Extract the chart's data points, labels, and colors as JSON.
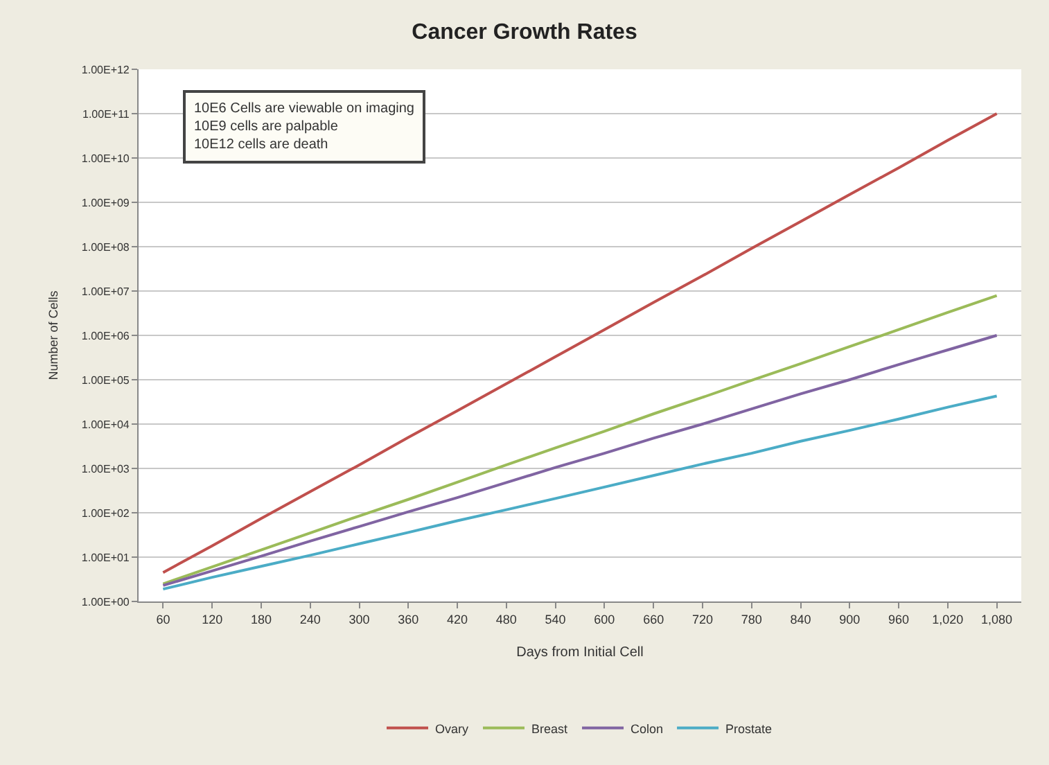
{
  "chart_data": {
    "type": "line",
    "title": "Cancer Growth Rates",
    "xlabel": "Days from Initial Cell",
    "ylabel": "Number of Cells",
    "categories": [
      "60",
      "120",
      "180",
      "240",
      "300",
      "360",
      "420",
      "480",
      "540",
      "600",
      "660",
      "720",
      "780",
      "840",
      "900",
      "960",
      "1,020",
      "1,080"
    ],
    "series": [
      {
        "name": "Ovary",
        "color": "#c0504d",
        "values": [
          4.5,
          18,
          74,
          300,
          1200,
          5000,
          20000,
          81000,
          330000,
          1350000,
          5500000,
          22000000,
          91000000,
          370000000,
          1500000000,
          6000000000,
          25000000000,
          100000000000
        ]
      },
      {
        "name": "Breast",
        "color": "#9bbb59",
        "values": [
          2.5,
          6.0,
          14.5,
          35,
          85,
          200,
          490,
          1200,
          2900,
          6900,
          17000,
          40000,
          97000,
          230000,
          560000,
          1350000,
          3300000,
          7900000
        ]
      },
      {
        "name": "Colon",
        "color": "#8064a2",
        "values": [
          2.3,
          4.9,
          10.5,
          23,
          49,
          105,
          220,
          480,
          1050,
          2200,
          4800,
          10000,
          22000,
          48000,
          100000,
          220000,
          470000,
          1000000
        ]
      },
      {
        "name": "Prostate",
        "color": "#4bacc6",
        "values": [
          1.9,
          3.5,
          6.2,
          11,
          20,
          36,
          66,
          117,
          210,
          380,
          690,
          1260,
          2200,
          4100,
          7200,
          13000,
          24000,
          43000
        ]
      }
    ],
    "log": "y",
    "ylim": [
      1,
      1000000000000
    ],
    "yticks": [
      {
        "value": 1,
        "label": "1.00E+00"
      },
      {
        "value": 10,
        "label": "1.00E+01"
      },
      {
        "value": 100,
        "label": "1.00E+02"
      },
      {
        "value": 1000,
        "label": "1.00E+03"
      },
      {
        "value": 10000,
        "label": "1.00E+04"
      },
      {
        "value": 100000,
        "label": "1.00E+05"
      },
      {
        "value": 1000000,
        "label": "1.00E+06"
      },
      {
        "value": 10000000,
        "label": "1.00E+07"
      },
      {
        "value": 100000000,
        "label": "1.00E+08"
      },
      {
        "value": 1000000000,
        "label": "1.00E+09"
      },
      {
        "value": 10000000000,
        "label": "1.00E+10"
      },
      {
        "value": 100000000000,
        "label": "1.00E+11"
      },
      {
        "value": 1000000000000,
        "label": "1.00E+12"
      }
    ],
    "grid": "y",
    "legend": "bottom",
    "marker": "none",
    "line_style": "solid",
    "annotations": [
      "10E6 Cells are viewable on imaging\n10E9 cells are palpable\n10E12 cells are death"
    ]
  }
}
